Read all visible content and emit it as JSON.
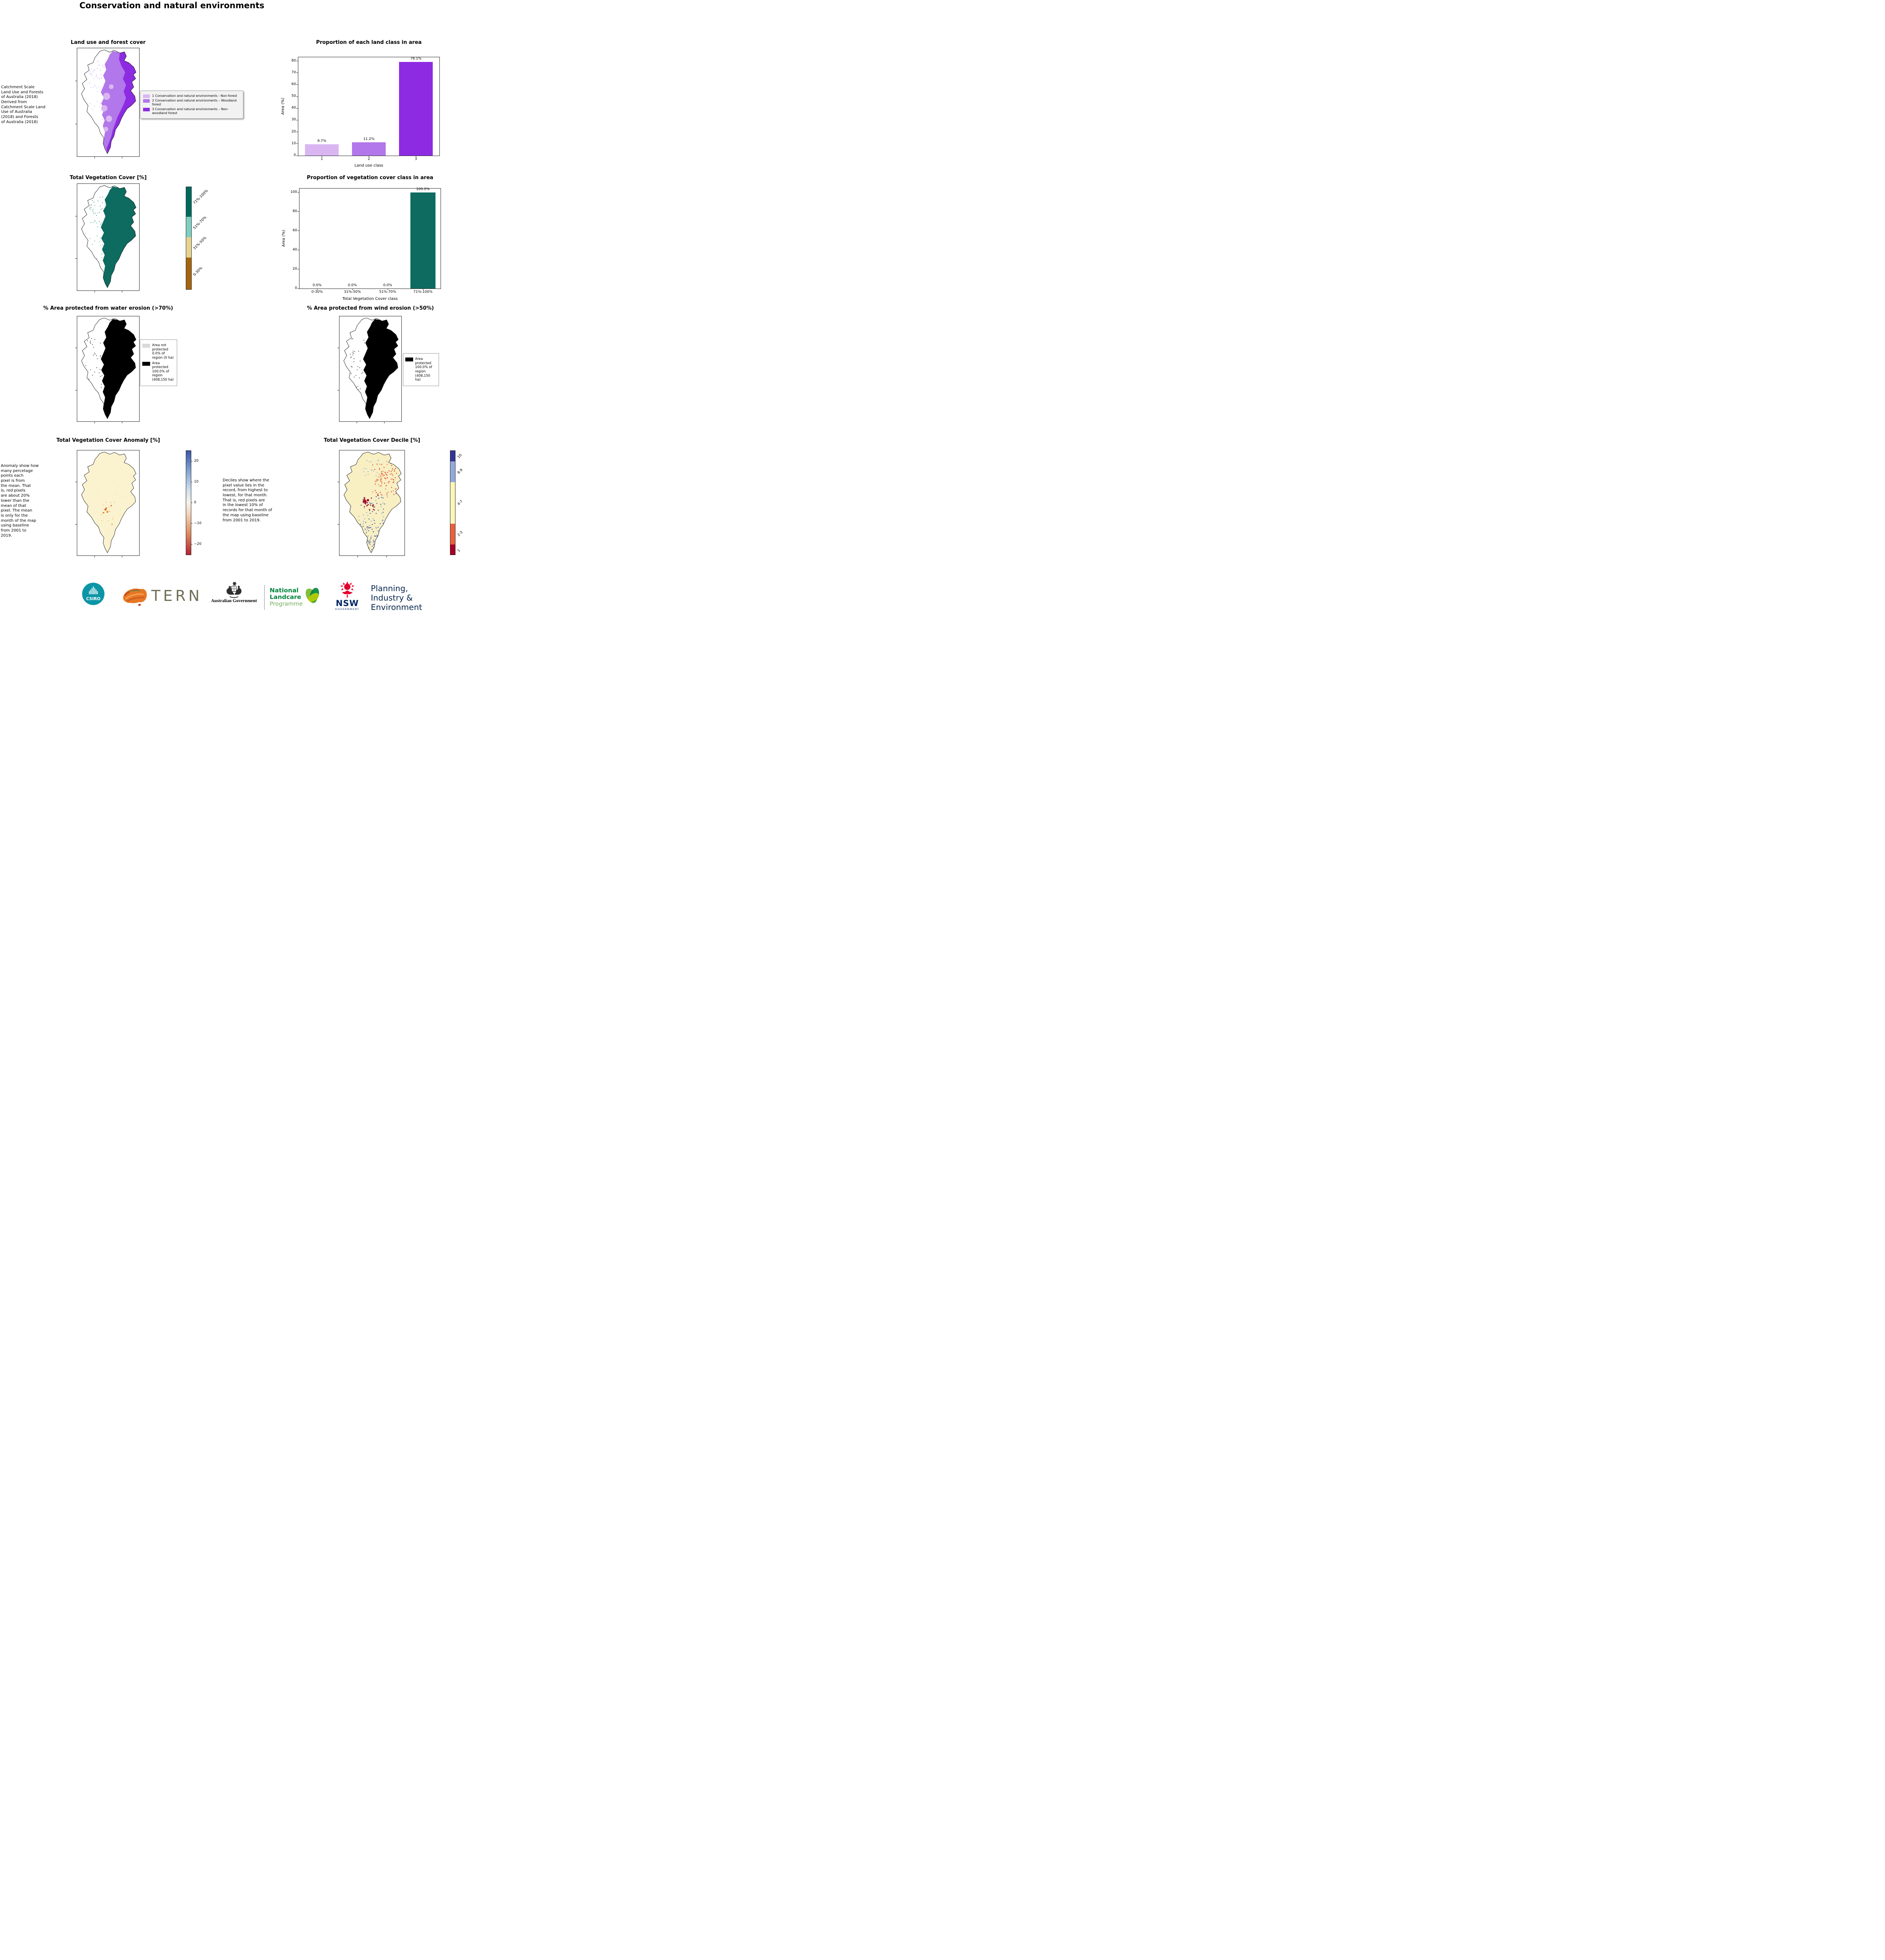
{
  "page": {
    "title": "Conservation and natural environments"
  },
  "land_use_panel": {
    "title": "Land use and forest cover",
    "source_note": "Catchment Scale\nLand Use and Forests\nof Australia (2018)\nDerived from\nCatchment Scale Land\nUse of Australia\n(2018) and Forests\nof Australia (2018)",
    "legend": [
      {
        "label": "1 Conservation and natural environments - Non-forest",
        "color": "#d9b6f2"
      },
      {
        "label": "2 Conservation and natural environments – Woodland forest",
        "color": "#b277ea"
      },
      {
        "label": "3 Conservation and natural environments – Non-woodland forest",
        "color": "#8d2be2"
      }
    ]
  },
  "veg_cover_panel": {
    "title": "Total Vegetation Cover [%]",
    "colorbar": [
      {
        "label": "71%-100%",
        "color": "#00695e",
        "fraction": 0.29
      },
      {
        "label": "51%-70%",
        "color": "#7ecfc0",
        "fraction": 0.2
      },
      {
        "label": "31%-50%",
        "color": "#e5d391",
        "fraction": 0.2
      },
      {
        "label": "0-30%",
        "color": "#a3660f",
        "fraction": 0.31
      }
    ]
  },
  "water_erosion_panel": {
    "title": "% Area protected from water erosion (>70%)",
    "legend": [
      {
        "label": "Area not protected 0.0% of region (0 ha)",
        "color": "#d9d9d9"
      },
      {
        "label": "Area protected 100.0% of region (408,150 ha)",
        "color": "#000000"
      }
    ]
  },
  "wind_erosion_panel": {
    "title": "% Area protected from wind erosion (>50%)",
    "legend": [
      {
        "label": "Area protected 100.0% of region (408,150 ha)",
        "color": "#000000"
      }
    ]
  },
  "anomaly_panel": {
    "title": "Total Vegetation Cover Anomaly [%]",
    "note": "Anomaly show how\nmany percetage\npoints each\npixel is from\nthe mean. That\nis, red pixels\nare about 20%\nlower than the\nmean of that\npixel. The mean\nis only for the\nmonth of the map\nusing baseline\nfrom 2001 to\n2019.",
    "colorbar_vlim": [
      -25,
      25
    ],
    "colorbar_ticks": [
      {
        "value": 20,
        "label": "20"
      },
      {
        "value": 10,
        "label": "10"
      },
      {
        "value": 0,
        "label": "0"
      },
      {
        "value": -10,
        "label": "−10"
      },
      {
        "value": -20,
        "label": "−20"
      }
    ]
  },
  "decile_panel": {
    "title": "Total Vegetation Cover Decile [%]",
    "note": "Deciles show where the\npixel value lies in the\nrecord, from highest to\nlowest, for that month.\nThat is, red pixels are\nin the lowest 10% of\nrecords for that month of\nthe map using baseline\nfrom 2001 to 2019.",
    "colorbar": [
      {
        "label": "10",
        "color": "#313695",
        "fraction": 0.1
      },
      {
        "label": "8-9",
        "color": "#94a8da",
        "fraction": 0.2
      },
      {
        "label": "4-7",
        "color": "#fdf6b8",
        "fraction": 0.4
      },
      {
        "label": "2-3",
        "color": "#e8603c",
        "fraction": 0.2
      },
      {
        "label": "1",
        "color": "#a50026",
        "fraction": 0.1
      }
    ]
  },
  "chart_data": [
    {
      "type": "bar",
      "title": "Proportion of each land class in area",
      "xlabel": "Land use class",
      "ylabel": "Area (%)",
      "categories": [
        "1",
        "2",
        "3"
      ],
      "values": [
        9.7,
        11.2,
        79.1
      ],
      "value_labels": [
        "9.7%",
        "11.2%",
        "79.1%"
      ],
      "bar_colors": [
        "#d9b6f2",
        "#b277ea",
        "#8d2be2"
      ],
      "ylim": [
        0,
        80
      ],
      "yticks": [
        0,
        10,
        20,
        30,
        40,
        50,
        60,
        70,
        80
      ],
      "grid": false,
      "legend_position": "none"
    },
    {
      "type": "bar",
      "title": "Proportion of vegetation cover class in area",
      "xlabel": "Total Vegetation Cover class",
      "ylabel": "Area (%)",
      "categories": [
        "0-30%",
        "31%-50%",
        "51%-70%",
        "71%-100%"
      ],
      "values": [
        0.0,
        0.0,
        0.0,
        100.0
      ],
      "value_labels": [
        "0.0%",
        "0.0%",
        "0.0%",
        "100.0%"
      ],
      "bar_colors": [
        "#0d6b60",
        "#0d6b60",
        "#0d6b60",
        "#0d6b60"
      ],
      "ylim": [
        0,
        100
      ],
      "yticks": [
        0,
        20,
        40,
        60,
        80,
        100
      ],
      "grid": false,
      "legend_position": "none"
    }
  ],
  "footer": {
    "csiro": "CSIRO",
    "tern": "TERN",
    "aus_gov": "Australian Government",
    "landcare": {
      "line1": "National",
      "line2": "Landcare",
      "line3": "Programme"
    },
    "nsw": {
      "name": "NSW",
      "sub": "GOVERNMENT"
    },
    "planning": {
      "line1": "Planning,",
      "line2": "Industry &",
      "line3": "Environment"
    }
  }
}
